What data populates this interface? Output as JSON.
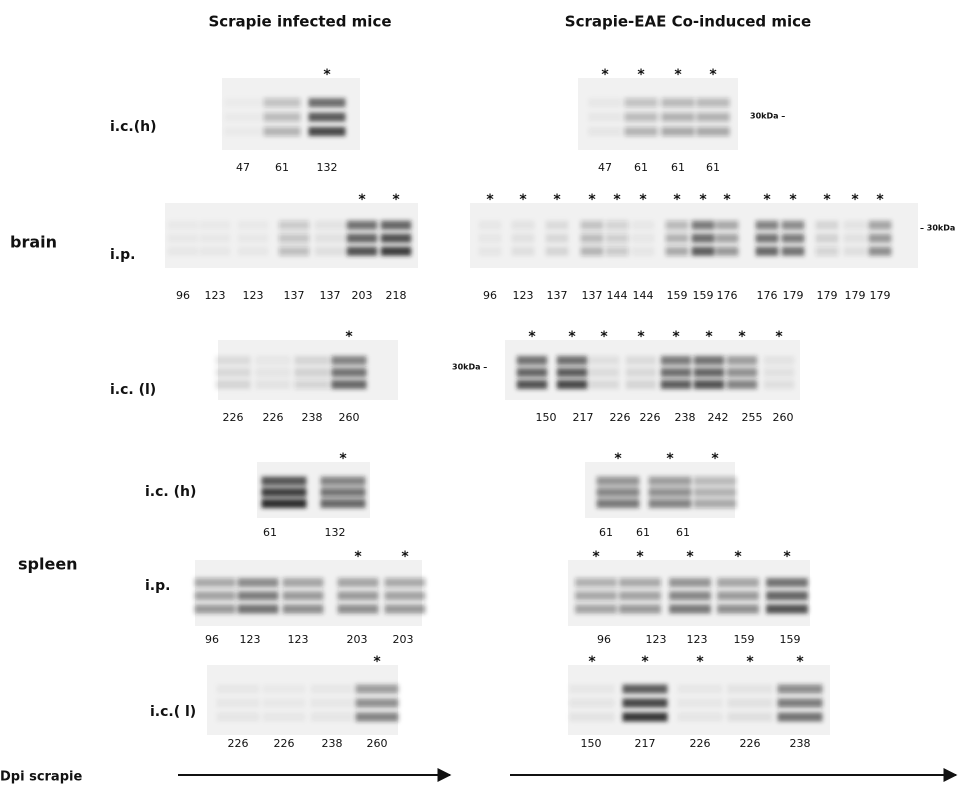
{
  "figure": {
    "titles": [
      "Scrapie infected mice",
      "Scrapie-EAE Co-induced mice"
    ],
    "groups": [
      {
        "label": "brain"
      },
      {
        "label": "spleen"
      }
    ],
    "axis_label": "Dpi scrapie",
    "panels": [
      {
        "label": "i.c.(h)",
        "left": {
          "lanes": [
            {
              "dpi": "47"
            },
            {
              "dpi": "61"
            },
            {
              "dpi": "132",
              "mark": "*"
            }
          ]
        },
        "right": {
          "marker": "30kDa –",
          "lanes": [
            {
              "dpi": "47",
              "mark": "*"
            },
            {
              "dpi": "61",
              "mark": "*"
            },
            {
              "dpi": "61",
              "mark": "*"
            },
            {
              "dpi": "61",
              "mark": "*"
            }
          ]
        }
      },
      {
        "label": "i.p.",
        "left": {
          "lanes": [
            {
              "dpi": "96"
            },
            {
              "dpi": "123"
            },
            {
              "dpi": "123"
            },
            {
              "dpi": "137"
            },
            {
              "dpi": "137"
            },
            {
              "dpi": "203",
              "mark": "*"
            },
            {
              "dpi": "218",
              "mark": "*"
            }
          ]
        },
        "right": {
          "marker": "– 30kDa",
          "lanes": [
            {
              "dpi": "96",
              "mark": "*"
            },
            {
              "dpi": "123",
              "mark": "*"
            },
            {
              "dpi": "137",
              "mark": "*"
            },
            {
              "dpi": "137",
              "mark": "*"
            },
            {
              "dpi": "144",
              "mark": "*"
            },
            {
              "dpi": "144",
              "mark": "*"
            },
            {
              "dpi": "159",
              "mark": "*"
            },
            {
              "dpi": "159",
              "mark": "*"
            },
            {
              "dpi": "176",
              "mark": "*"
            },
            {
              "dpi": "176",
              "mark": "*"
            },
            {
              "dpi": "179",
              "mark": "*"
            },
            {
              "dpi": "179",
              "mark": "*"
            },
            {
              "dpi": "179",
              "mark": "*"
            },
            {
              "dpi": "179",
              "mark": "*"
            }
          ]
        }
      },
      {
        "label": "i.c. (l)",
        "left": {
          "lanes": [
            {
              "dpi": "226"
            },
            {
              "dpi": "226"
            },
            {
              "dpi": "238"
            },
            {
              "dpi": "260",
              "mark": "*"
            }
          ]
        },
        "right": {
          "marker": "30kDa –",
          "lanes": [
            {
              "dpi": "150",
              "mark": "*"
            },
            {
              "dpi": "217",
              "mark": "*"
            },
            {
              "dpi": "226",
              "mark": "*"
            },
            {
              "dpi": "226",
              "mark": "*"
            },
            {
              "dpi": "238",
              "mark": "*"
            },
            {
              "dpi": "242",
              "mark": "*"
            },
            {
              "dpi": "255",
              "mark": "*"
            },
            {
              "dpi": "260",
              "mark": "*"
            }
          ]
        }
      },
      {
        "label": "i.c. (h)",
        "left": {
          "lanes": [
            {
              "dpi": "61"
            },
            {
              "dpi": "132",
              "mark": "*"
            }
          ]
        },
        "right": {
          "lanes": [
            {
              "dpi": "61",
              "mark": "*"
            },
            {
              "dpi": "61",
              "mark": "*"
            },
            {
              "dpi": "61",
              "mark": "*"
            }
          ]
        }
      },
      {
        "label": "i.p.",
        "left": {
          "lanes": [
            {
              "dpi": "96"
            },
            {
              "dpi": "123"
            },
            {
              "dpi": "123"
            },
            {
              "dpi": "203",
              "mark": "*"
            },
            {
              "dpi": "203",
              "mark": "*"
            }
          ]
        },
        "right": {
          "lanes": [
            {
              "dpi": "96",
              "mark": "*"
            },
            {
              "dpi": "123",
              "mark": "*"
            },
            {
              "dpi": "123",
              "mark": "*"
            },
            {
              "dpi": "159",
              "mark": "*"
            },
            {
              "dpi": "159",
              "mark": "*"
            }
          ]
        }
      },
      {
        "label": "i.c.( l)",
        "left": {
          "lanes": [
            {
              "dpi": "226"
            },
            {
              "dpi": "226"
            },
            {
              "dpi": "238"
            },
            {
              "dpi": "260",
              "mark": "*"
            }
          ]
        },
        "right": {
          "lanes": [
            {
              "dpi": "150",
              "mark": "*"
            },
            {
              "dpi": "217",
              "mark": "*"
            },
            {
              "dpi": "226",
              "mark": "*"
            },
            {
              "dpi": "226",
              "mark": "*"
            },
            {
              "dpi": "238",
              "mark": "*"
            }
          ]
        }
      }
    ]
  }
}
